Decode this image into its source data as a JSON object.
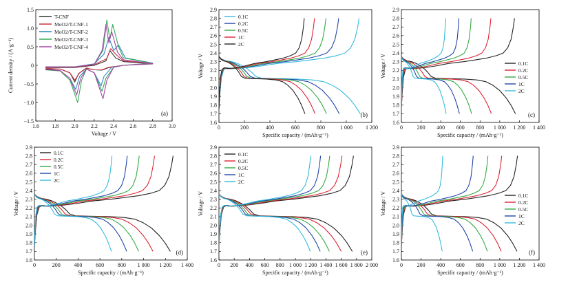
{
  "chart_data": [
    {
      "id": "a",
      "type": "line",
      "panel_label": "(a)",
      "xlabel": "Voltage / V",
      "ylabel": "Current density / (A·g⁻¹)",
      "xlim": [
        1.6,
        3.0
      ],
      "ylim": [
        -1.5,
        1.5
      ],
      "xticks": [
        "1.6",
        "1.8",
        "2.0",
        "2.2",
        "2.4",
        "2.6",
        "2.8",
        "3.0"
      ],
      "yticks": [
        "−1.5",
        "−1.0",
        "−0.5",
        "0",
        "0.5",
        "1.0",
        "1.5"
      ],
      "legend": "top-left",
      "series": [
        {
          "name": "T-CNF",
          "color": "#333333",
          "values": [
            [
              1.7,
              -0.1
            ],
            [
              1.85,
              -0.1
            ],
            [
              1.95,
              -0.2
            ],
            [
              2.0,
              -0.45
            ],
            [
              2.04,
              -0.22
            ],
            [
              2.12,
              -0.08
            ],
            [
              2.2,
              -0.12
            ],
            [
              2.28,
              -0.13
            ],
            [
              2.35,
              -0.06
            ],
            [
              2.5,
              0.0
            ],
            [
              2.8,
              0.04
            ],
            [
              2.5,
              0.1
            ],
            [
              2.42,
              0.2
            ],
            [
              2.36,
              0.4
            ],
            [
              2.32,
              0.12
            ],
            [
              2.2,
              0.0
            ],
            [
              2.0,
              -0.06
            ],
            [
              1.7,
              -0.06
            ]
          ]
        },
        {
          "name": "MoO2/T-CNF-1",
          "color": "#cc3344",
          "values": [
            [
              1.7,
              -0.08
            ],
            [
              1.85,
              -0.1
            ],
            [
              1.95,
              -0.2
            ],
            [
              2.0,
              -0.4
            ],
            [
              2.05,
              -0.2
            ],
            [
              2.12,
              -0.07
            ],
            [
              2.2,
              -0.12
            ],
            [
              2.28,
              -0.12
            ],
            [
              2.35,
              -0.05
            ],
            [
              2.5,
              0.0
            ],
            [
              2.8,
              0.05
            ],
            [
              2.5,
              0.12
            ],
            [
              2.42,
              0.3
            ],
            [
              2.37,
              0.45
            ],
            [
              2.33,
              0.18
            ],
            [
              2.2,
              0.02
            ],
            [
              2.0,
              -0.05
            ],
            [
              1.7,
              -0.05
            ]
          ]
        },
        {
          "name": "MoO2/T-CNF-2",
          "color": "#2e86c1",
          "values": [
            [
              1.7,
              -0.12
            ],
            [
              1.85,
              -0.15
            ],
            [
              1.95,
              -0.35
            ],
            [
              2.01,
              -0.65
            ],
            [
              2.05,
              -0.3
            ],
            [
              2.12,
              -0.1
            ],
            [
              2.2,
              -0.2
            ],
            [
              2.27,
              -0.55
            ],
            [
              2.3,
              -0.3
            ],
            [
              2.38,
              -0.05
            ],
            [
              2.5,
              0.0
            ],
            [
              2.8,
              0.06
            ],
            [
              2.52,
              0.2
            ],
            [
              2.45,
              0.55
            ],
            [
              2.4,
              0.4
            ],
            [
              2.35,
              0.75
            ],
            [
              2.3,
              0.3
            ],
            [
              2.2,
              0.04
            ],
            [
              2.0,
              -0.04
            ],
            [
              1.7,
              -0.04
            ]
          ]
        },
        {
          "name": "MoO2/T-CNF-3",
          "color": "#33aa55",
          "values": [
            [
              1.7,
              -0.12
            ],
            [
              1.85,
              -0.15
            ],
            [
              1.95,
              -0.4
            ],
            [
              2.03,
              -1.0
            ],
            [
              2.07,
              -0.4
            ],
            [
              2.12,
              -0.1
            ],
            [
              2.2,
              -0.2
            ],
            [
              2.28,
              -0.7
            ],
            [
              2.32,
              -0.35
            ],
            [
              2.4,
              -0.05
            ],
            [
              2.5,
              0.0
            ],
            [
              2.8,
              0.06
            ],
            [
              2.5,
              0.2
            ],
            [
              2.45,
              0.5
            ],
            [
              2.39,
              1.1
            ],
            [
              2.36,
              0.7
            ],
            [
              2.33,
              1.22
            ],
            [
              2.29,
              0.4
            ],
            [
              2.2,
              0.03
            ],
            [
              2.0,
              -0.04
            ],
            [
              1.7,
              -0.04
            ]
          ]
        },
        {
          "name": "MoO2/T-CNF-4",
          "color": "#aa44aa",
          "values": [
            [
              1.7,
              -0.11
            ],
            [
              1.85,
              -0.14
            ],
            [
              1.95,
              -0.35
            ],
            [
              2.02,
              -0.8
            ],
            [
              2.06,
              -0.35
            ],
            [
              2.12,
              -0.1
            ],
            [
              2.2,
              -0.2
            ],
            [
              2.29,
              -0.9
            ],
            [
              2.33,
              -0.4
            ],
            [
              2.4,
              -0.05
            ],
            [
              2.5,
              0.0
            ],
            [
              2.8,
              0.05
            ],
            [
              2.5,
              0.15
            ],
            [
              2.44,
              0.35
            ],
            [
              2.38,
              0.9
            ],
            [
              2.35,
              0.6
            ],
            [
              2.32,
              1.1
            ],
            [
              2.28,
              0.4
            ],
            [
              2.2,
              0.03
            ],
            [
              2.0,
              -0.04
            ],
            [
              1.7,
              -0.04
            ]
          ]
        }
      ]
    },
    {
      "id": "b",
      "type": "line",
      "panel_label": "(b)",
      "xlabel": "Specific capacity / (mAh·g⁻¹)",
      "ylabel": "Voltage / V",
      "xlim": [
        0,
        1200
      ],
      "ylim": [
        1.6,
        2.9
      ],
      "xticks": [
        "0",
        "200",
        "400",
        "600",
        "800",
        "1 000",
        "1 200"
      ],
      "yticks": [
        "1.6",
        "1.7",
        "1.8",
        "1.9",
        "2.0",
        "2.1",
        "2.2",
        "2.3",
        "2.4",
        "2.5",
        "2.6",
        "2.7",
        "2.8",
        "2.9"
      ],
      "legend": "top-left",
      "series": [
        {
          "name": "0.1C",
          "color": "#33bbdd",
          "discharge_capacity": 1110,
          "charge_capacity": 1100
        },
        {
          "name": "0.2C",
          "color": "#2244aa",
          "discharge_capacity": 945,
          "charge_capacity": 940
        },
        {
          "name": "0.5C",
          "color": "#33aa44",
          "discharge_capacity": 845,
          "charge_capacity": 840
        },
        {
          "name": "1C",
          "color": "#dd2233",
          "discharge_capacity": 755,
          "charge_capacity": 750
        },
        {
          "name": "2C",
          "color": "#222222",
          "discharge_capacity": 675,
          "charge_capacity": 670
        }
      ]
    },
    {
      "id": "c",
      "type": "line",
      "panel_label": "(c)",
      "xlabel": "Specific capacity / (mAh·g⁻¹)",
      "ylabel": "Voltage / V",
      "xlim": [
        0,
        1400
      ],
      "ylim": [
        1.6,
        2.9
      ],
      "xticks": [
        "0",
        "200",
        "400",
        "600",
        "800",
        "1 000",
        "1 200",
        "1 400"
      ],
      "yticks": [
        "1.6",
        "1.7",
        "1.8",
        "1.9",
        "2.0",
        "2.1",
        "2.2",
        "2.3",
        "2.4",
        "2.5",
        "2.6",
        "2.7",
        "2.8",
        "2.9"
      ],
      "legend": "right",
      "series": [
        {
          "name": "0.1C",
          "color": "#222222",
          "discharge_capacity": 1160,
          "charge_capacity": 1150
        },
        {
          "name": "0.2C",
          "color": "#dd2233",
          "discharge_capacity": 915,
          "charge_capacity": 910
        },
        {
          "name": "0.5C",
          "color": "#33aa44",
          "discharge_capacity": 715,
          "charge_capacity": 710
        },
        {
          "name": "1C",
          "color": "#2244aa",
          "discharge_capacity": 590,
          "charge_capacity": 585
        },
        {
          "name": "2C",
          "color": "#33bbdd",
          "discharge_capacity": 455,
          "charge_capacity": 450
        }
      ]
    },
    {
      "id": "d",
      "type": "line",
      "panel_label": "(d)",
      "xlabel": "Specific capacity / (mAh·g⁻¹)",
      "ylabel": "Voltage / V",
      "xlim": [
        0,
        1400
      ],
      "ylim": [
        1.6,
        2.9
      ],
      "xticks": [
        "0",
        "200",
        "400",
        "600",
        "800",
        "1 000",
        "1 200",
        "1 400"
      ],
      "yticks": [
        "1.6",
        "1.7",
        "1.8",
        "1.9",
        "2.0",
        "2.1",
        "2.2",
        "2.3",
        "2.4",
        "2.5",
        "2.6",
        "2.7",
        "2.8",
        "2.9"
      ],
      "legend": "top-left",
      "series": [
        {
          "name": "0.1C",
          "color": "#222222",
          "discharge_capacity": 1245,
          "charge_capacity": 1270
        },
        {
          "name": "0.2C",
          "color": "#dd2233",
          "discharge_capacity": 1085,
          "charge_capacity": 1100
        },
        {
          "name": "0.5C",
          "color": "#33aa44",
          "discharge_capacity": 955,
          "charge_capacity": 960
        },
        {
          "name": "1C",
          "color": "#2244aa",
          "discharge_capacity": 845,
          "charge_capacity": 850
        },
        {
          "name": "2C",
          "color": "#33bbdd",
          "discharge_capacity": 705,
          "charge_capacity": 710
        }
      ]
    },
    {
      "id": "e",
      "type": "line",
      "panel_label": "(e)",
      "xlabel": "Specific capacity / (mAh·g⁻¹)",
      "ylabel": "Voltage / V",
      "xlim": [
        0,
        2000
      ],
      "ylim": [
        1.6,
        2.9
      ],
      "xticks": [
        "0",
        "200",
        "400",
        "600",
        "800",
        "1 000",
        "1 200",
        "1 400",
        "1 600",
        "1 800",
        "2 000"
      ],
      "yticks": [
        "1.6",
        "1.7",
        "1.8",
        "1.9",
        "2.0",
        "2.1",
        "2.2",
        "2.3",
        "2.4",
        "2.5",
        "2.6",
        "2.7",
        "2.8",
        "2.9"
      ],
      "legend": "top-left",
      "series": [
        {
          "name": "0.1C",
          "color": "#222222",
          "discharge_capacity": 1745,
          "charge_capacity": 1760
        },
        {
          "name": "0.2C",
          "color": "#dd2233",
          "discharge_capacity": 1600,
          "charge_capacity": 1610
        },
        {
          "name": "0.5C",
          "color": "#33aa44",
          "discharge_capacity": 1445,
          "charge_capacity": 1450
        },
        {
          "name": "1C",
          "color": "#2244aa",
          "discharge_capacity": 1325,
          "charge_capacity": 1330
        },
        {
          "name": "2C",
          "color": "#33bbdd",
          "discharge_capacity": 1195,
          "charge_capacity": 1200
        }
      ]
    },
    {
      "id": "f",
      "type": "line",
      "panel_label": "(f)",
      "xlabel": "Specific capacity / (mAh·g⁻¹)",
      "ylabel": "Voltage / V",
      "xlim": [
        0,
        1400
      ],
      "ylim": [
        1.6,
        2.9
      ],
      "xticks": [
        "0",
        "200",
        "400",
        "600",
        "800",
        "1 000",
        "1 200",
        "1 400"
      ],
      "yticks": [
        "1.6",
        "1.7",
        "1.8",
        "1.9",
        "2.0",
        "2.1",
        "2.2",
        "2.3",
        "2.4",
        "2.5",
        "2.6",
        "2.7",
        "2.8",
        "2.9"
      ],
      "legend": "right",
      "series": [
        {
          "name": "0.1C",
          "color": "#222222",
          "discharge_capacity": 1175,
          "charge_capacity": 1180
        },
        {
          "name": "0.2C",
          "color": "#dd2233",
          "discharge_capacity": 1015,
          "charge_capacity": 1020
        },
        {
          "name": "0.5C",
          "color": "#33aa44",
          "discharge_capacity": 875,
          "charge_capacity": 880
        },
        {
          "name": "1C",
          "color": "#2244aa",
          "discharge_capacity": 725,
          "charge_capacity": 730
        },
        {
          "name": "2C",
          "color": "#33bbdd",
          "discharge_capacity": 415,
          "charge_capacity": 420
        }
      ]
    }
  ]
}
